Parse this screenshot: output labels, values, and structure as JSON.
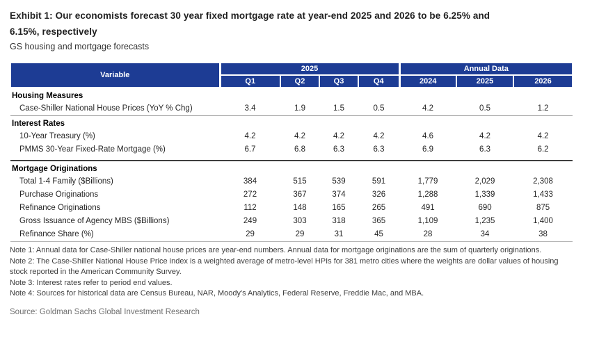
{
  "colors": {
    "header_blue": "#1d3c94",
    "section_separator_light": "#9e9e9e",
    "section_separator_dark": "#3f3f3f",
    "table_bottom_border": "#b5b5b5"
  },
  "chart_data": {
    "type": "table",
    "title_lines": [
      "Exhibit 1: Our economists forecast 30 year fixed mortgage rate at year-end 2025 and 2026 to be 6.25% and",
      "6.15%, respectively"
    ],
    "subtitle": "GS housing and mortgage forecasts",
    "variable_header": "Variable",
    "column_groups": [
      "2025",
      "Annual Data"
    ],
    "quarters": [
      "Q1",
      "Q2",
      "Q3",
      "Q4"
    ],
    "years": [
      "2024",
      "2025",
      "2026"
    ],
    "sections": [
      {
        "title": "Housing Measures",
        "rows": [
          {
            "label": "Case-Shiller National House Prices (YoY % Chg)",
            "values": [
              "3.4",
              "1.9",
              "1.5",
              "0.5",
              "4.2",
              "0.5",
              "1.2"
            ]
          }
        ]
      },
      {
        "title": "Interest Rates",
        "rows": [
          {
            "label": "10-Year Treasury (%)",
            "values": [
              "4.2",
              "4.2",
              "4.2",
              "4.2",
              "4.6",
              "4.2",
              "4.2"
            ]
          },
          {
            "label": "PMMS 30-Year Fixed-Rate Mortgage (%)",
            "values": [
              "6.7",
              "6.8",
              "6.3",
              "6.3",
              "6.9",
              "6.3",
              "6.2"
            ]
          }
        ]
      },
      {
        "title": "Mortgage Originations",
        "rows": [
          {
            "label": "Total 1-4 Family ($Billions)",
            "values": [
              "384",
              "515",
              "539",
              "591",
              "1,779",
              "2,029",
              "2,308"
            ]
          },
          {
            "label": "Purchase Originations",
            "values": [
              "272",
              "367",
              "374",
              "326",
              "1,288",
              "1,339",
              "1,433"
            ]
          },
          {
            "label": "Refinance Originations",
            "values": [
              "112",
              "148",
              "165",
              "265",
              "491",
              "690",
              "875"
            ]
          },
          {
            "label": "Gross Issuance of Agency MBS ($Billions)",
            "values": [
              "249",
              "303",
              "318",
              "365",
              "1,109",
              "1,235",
              "1,400"
            ]
          },
          {
            "label": "Refinance Share (%)",
            "values": [
              "29",
              "29",
              "31",
              "45",
              "28",
              "34",
              "38"
            ]
          }
        ]
      }
    ],
    "notes": [
      "Note 1: Annual data for Case-Shiller national house prices are year-end numbers. Annual data for mortgage originations are the sum of quarterly originations.",
      "Note 2: The Case-Shiller National House Price index is a weighted average of metro-level HPIs for 381 metro cities where the weights are dollar values of housing stock reported in the American Community Survey.",
      "Note 3: Interest rates refer to period end values.",
      "Note 4: Sources for historical data are Census Bureau, NAR, Moody's Analytics, Federal Reserve, Freddie Mac, and MBA."
    ],
    "source": "Source: Goldman Sachs Global Investment Research"
  }
}
